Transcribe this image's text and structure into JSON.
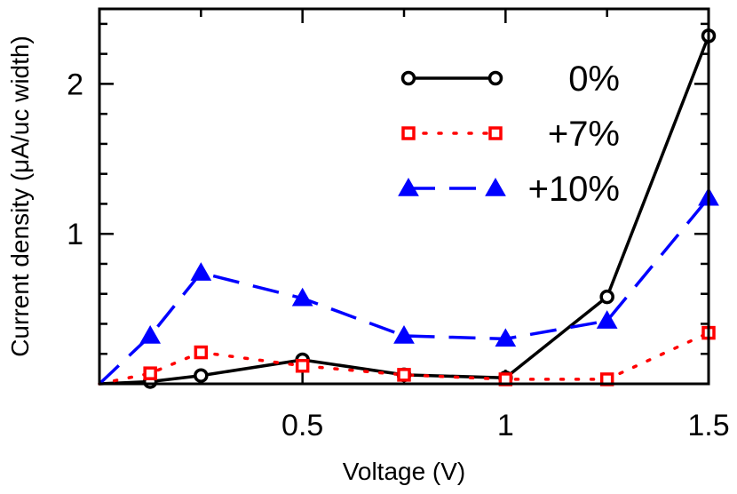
{
  "chart_data": {
    "type": "line",
    "xlabel": "Voltage (V)",
    "ylabel": "Current density (μA/uc width)",
    "xlim": [
      0,
      1.5
    ],
    "ylim": [
      0,
      2.5
    ],
    "xticks": [
      0.5,
      1,
      1.5
    ],
    "xtick_labels": [
      "0.5",
      "1",
      "1.5"
    ],
    "xminor": [
      0.25,
      0.75,
      1.25
    ],
    "yticks": [
      1,
      2
    ],
    "ytick_labels": [
      "1",
      "2"
    ],
    "yminor": [
      0.2,
      0.4,
      0.6,
      0.8,
      1.2,
      1.4,
      1.6,
      1.8,
      2.2,
      2.4
    ],
    "legend_position": "top-right",
    "series": [
      {
        "name": "0%",
        "color": "#000000",
        "marker": "circle",
        "line": "solid",
        "x": [
          0,
          0.125,
          0.25,
          0.5,
          0.75,
          1.0,
          1.25,
          1.5
        ],
        "y": [
          0,
          0.015,
          0.055,
          0.16,
          0.06,
          0.04,
          0.58,
          2.32
        ],
        "marker_x": [
          0.125,
          0.25,
          0.5,
          0.75,
          1.0,
          1.25,
          1.5
        ]
      },
      {
        "name": "+7%",
        "color": "#ff0000",
        "marker": "square",
        "line": "dotted",
        "x": [
          0,
          0.125,
          0.25,
          0.5,
          0.75,
          1.0,
          1.25,
          1.5
        ],
        "y": [
          0,
          0.07,
          0.21,
          0.12,
          0.06,
          0.03,
          0.03,
          0.34
        ],
        "marker_x": [
          0.125,
          0.25,
          0.5,
          0.75,
          1.0,
          1.25,
          1.5
        ]
      },
      {
        "name": "+10%",
        "color": "#0000ff",
        "marker": "triangle",
        "line": "dashed",
        "x": [
          0,
          0.125,
          0.25,
          0.5,
          0.75,
          1.0,
          1.25,
          1.5
        ],
        "y": [
          0,
          0.32,
          0.74,
          0.57,
          0.32,
          0.3,
          0.42,
          1.24
        ],
        "marker_x": [
          0.125,
          0.25,
          0.5,
          0.75,
          1.0,
          1.25,
          1.5
        ]
      }
    ]
  }
}
